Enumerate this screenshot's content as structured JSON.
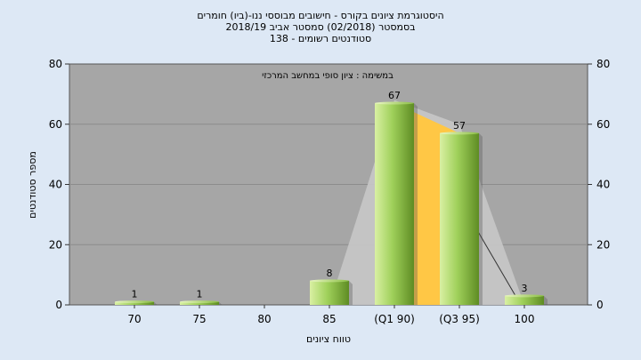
{
  "chart_data": {
    "type": "bar",
    "title_lines": [
      "היסטוגרמת ציונים בקורס - חישובים מבוססי ננו-(ביו) חומרים",
      "בסמסטר  (02/2018)  סמסטר אביב 2018/19",
      "סטודנטים רשומים - 138"
    ],
    "subtitle": "במשימה : ציון סופי במחשב המרכזי",
    "categories": [
      "70",
      "75",
      "80",
      "85",
      "(Q1 90)",
      "(Q3 95)",
      "100"
    ],
    "values": [
      1,
      1,
      0,
      8,
      67,
      57,
      3
    ],
    "data_labels": [
      "1",
      "1",
      "",
      "8",
      "67",
      "57",
      "3"
    ],
    "ylabel": "מספר סטודנטים",
    "xlabel": "טווח ציונים",
    "ylim": [
      0,
      80
    ],
    "yticks": [
      0,
      20,
      40,
      60,
      80
    ],
    "grid": true,
    "colors": {
      "plot_bg": "#a6a6a6",
      "bar_light": "#d9f0a3",
      "bar_mid": "#9fd05a",
      "bar_dark": "#5e8c23",
      "quartile_fill": "#ffc745",
      "curve_fill": "#c8c8c8"
    }
  }
}
